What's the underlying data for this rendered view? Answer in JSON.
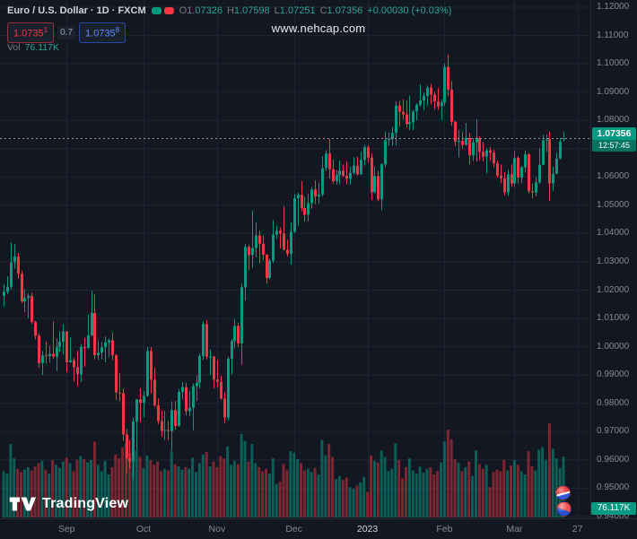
{
  "header": {
    "title": "Euro / U.S. Dollar · 1D · FXCM",
    "ohlc": {
      "o_label": "O",
      "o_value": "1.07326",
      "h_label": "H",
      "h_value": "1.07598",
      "l_label": "L",
      "l_value": "1.07251",
      "c_label": "C",
      "c_value": "1.07356",
      "change": "+0.00030 (+0.03%)"
    },
    "quote": {
      "sell": "1.0735",
      "sell_sup": "1",
      "spread": "0.7",
      "buy": "1.0735",
      "buy_sup": "8"
    },
    "vol_label": "Vol",
    "vol_value": "76.117K"
  },
  "watermark": "www.nehcap.com",
  "axis": {
    "last_price": "1.07356",
    "countdown": "12:57:45",
    "vol_badge": "76.117K"
  },
  "footer": {
    "brand": "TradingView"
  },
  "colors": {
    "bg": "#131722",
    "grid": "#1e2433",
    "up": "#089981",
    "down": "#f23645",
    "vol_up": "rgba(8,153,129,0.55)",
    "vol_down": "rgba(242,54,69,0.48)",
    "price_line": "#a9acb5",
    "text_dim": "#87898f",
    "text": "#d1d4dc",
    "badge_green": "#089981",
    "sell_red": "#f23645",
    "buy_blue": "#2962ff"
  },
  "chart_data": {
    "type": "candlestick",
    "title": "Euro / U.S. Dollar",
    "timeframe": "1D",
    "exchange": "FXCM",
    "ylim": [
      0.94,
      1.12
    ],
    "y_step": 0.01,
    "grid": true,
    "last_close": 1.07356,
    "x_ticks": [
      {
        "label": "Sep",
        "i": 18
      },
      {
        "label": "Oct",
        "i": 40
      },
      {
        "label": "Nov",
        "i": 61
      },
      {
        "label": "Dec",
        "i": 83
      },
      {
        "label": "2023",
        "i": 104,
        "major": true
      },
      {
        "label": "Feb",
        "i": 126
      },
      {
        "label": "Mar",
        "i": 146
      },
      {
        "label": "27",
        "i": 164
      }
    ],
    "candles_format": [
      "open",
      "high",
      "low",
      "close",
      "volume_K"
    ],
    "candles": [
      [
        1.018,
        1.0221,
        1.0142,
        1.0194,
        58
      ],
      [
        1.0194,
        1.0249,
        1.0185,
        1.0212,
        55
      ],
      [
        1.0212,
        1.0368,
        1.0202,
        1.0298,
        92
      ],
      [
        1.0298,
        1.0364,
        1.0276,
        1.0319,
        74
      ],
      [
        1.0319,
        1.0332,
        1.024,
        1.0258,
        61
      ],
      [
        1.0258,
        1.0269,
        1.0154,
        1.016,
        57
      ],
      [
        1.016,
        1.0203,
        1.0123,
        1.0172,
        60
      ],
      [
        1.0172,
        1.0188,
        1.01,
        1.018,
        63
      ],
      [
        1.018,
        1.0191,
        1.008,
        1.0088,
        59
      ],
      [
        1.0088,
        1.0092,
        1.0026,
        1.0039,
        64
      ],
      [
        1.0039,
        1.0047,
        0.9926,
        0.9942,
        68
      ],
      [
        0.9942,
        0.9985,
        0.99,
        0.9969,
        71
      ],
      [
        0.9969,
        1.0019,
        0.9942,
        0.9967,
        60
      ],
      [
        0.9967,
        1.0003,
        0.9944,
        0.9975,
        55
      ],
      [
        0.9975,
        1.009,
        0.9957,
        0.9965,
        72
      ],
      [
        0.9965,
        1.0029,
        0.9914,
        0.9999,
        66
      ],
      [
        0.9999,
        1.0055,
        0.9983,
        1.0018,
        62
      ],
      [
        1.0018,
        1.0079,
        0.9972,
        1.0054,
        70
      ],
      [
        1.0054,
        1.0055,
        0.991,
        0.9945,
        75
      ],
      [
        0.9945,
        1.0033,
        0.9944,
        0.9952,
        68
      ],
      [
        0.9952,
        0.996,
        0.9878,
        0.9928,
        58
      ],
      [
        0.9928,
        0.9987,
        0.9863,
        0.9903,
        72
      ],
      [
        0.9903,
        1.0009,
        0.9875,
        0.9999,
        77
      ],
      [
        0.9999,
        1.003,
        0.9929,
        0.9995,
        73
      ],
      [
        0.9995,
        1.0113,
        0.9993,
        1.004,
        69
      ],
      [
        1.004,
        1.0198,
        1.0038,
        1.0119,
        72
      ],
      [
        1.0119,
        1.0187,
        0.9955,
        0.997,
        95
      ],
      [
        0.997,
        1.0023,
        0.9954,
        0.9979,
        66
      ],
      [
        0.9979,
        1.0017,
        0.9955,
        0.9998,
        58
      ],
      [
        0.9998,
        1.0036,
        0.9945,
        1.0015,
        71
      ],
      [
        1.0015,
        1.0029,
        0.9964,
        1.0023,
        54
      ],
      [
        1.0023,
        1.0051,
        0.9954,
        0.997,
        63
      ],
      [
        0.997,
        0.9974,
        0.9812,
        0.9838,
        79
      ],
      [
        0.9838,
        0.9907,
        0.9807,
        0.9836,
        74
      ],
      [
        0.9836,
        0.9852,
        0.9667,
        0.969,
        88
      ],
      [
        0.969,
        0.9709,
        0.9554,
        0.9607,
        94
      ],
      [
        0.9607,
        0.967,
        0.957,
        0.9594,
        81
      ],
      [
        0.9594,
        0.975,
        0.9535,
        0.9735,
        99
      ],
      [
        0.9735,
        0.9815,
        0.9634,
        0.9814,
        84
      ],
      [
        0.9814,
        0.9853,
        0.9733,
        0.9802,
        76
      ],
      [
        0.9802,
        0.9844,
        0.9751,
        0.9826,
        62
      ],
      [
        0.9826,
        0.9999,
        0.9823,
        0.9985,
        78
      ],
      [
        0.9985,
        0.9999,
        0.9835,
        0.9884,
        72
      ],
      [
        0.9884,
        0.9926,
        0.9787,
        0.9793,
        66
      ],
      [
        0.9793,
        0.9817,
        0.9726,
        0.9737,
        70
      ],
      [
        0.9737,
        0.9774,
        0.9682,
        0.9703,
        58
      ],
      [
        0.9703,
        0.9774,
        0.967,
        0.9706,
        61
      ],
      [
        0.9706,
        0.9738,
        0.9669,
        0.9702,
        59
      ],
      [
        0.9702,
        0.9807,
        0.9632,
        0.9776,
        83
      ],
      [
        0.9776,
        0.9808,
        0.9707,
        0.972,
        67
      ],
      [
        0.972,
        0.9851,
        0.9718,
        0.984,
        64
      ],
      [
        0.984,
        0.9876,
        0.9815,
        0.9857,
        60
      ],
      [
        0.9857,
        0.9873,
        0.9757,
        0.9772,
        63
      ],
      [
        0.9772,
        0.9845,
        0.9756,
        0.9784,
        61
      ],
      [
        0.9784,
        0.987,
        0.9705,
        0.9861,
        75
      ],
      [
        0.9861,
        0.9899,
        0.9808,
        0.9873,
        57
      ],
      [
        0.9873,
        0.9976,
        0.9852,
        0.9967,
        68
      ],
      [
        0.9967,
        1.0089,
        0.9953,
        1.008,
        79
      ],
      [
        1.008,
        1.0094,
        0.9954,
        0.9965,
        82
      ],
      [
        0.9965,
        0.999,
        0.99,
        0.9965,
        64
      ],
      [
        0.9965,
        0.9968,
        0.9852,
        0.9884,
        70
      ],
      [
        0.9884,
        0.9953,
        0.9854,
        0.9876,
        63
      ],
      [
        0.9876,
        0.9897,
        0.9813,
        0.9817,
        77
      ],
      [
        0.9817,
        0.984,
        0.973,
        0.975,
        74
      ],
      [
        0.975,
        0.9965,
        0.9741,
        0.9958,
        89
      ],
      [
        0.9958,
        1.0027,
        0.9902,
        1.002,
        66
      ],
      [
        1.002,
        1.0096,
        0.9994,
        1.0074,
        71
      ],
      [
        1.0074,
        1.0086,
        0.9998,
        1.0012,
        67
      ],
      [
        1.0012,
        1.0222,
        0.9936,
        1.021,
        105
      ],
      [
        1.021,
        1.0364,
        1.0163,
        1.0353,
        96
      ],
      [
        1.0353,
        1.036,
        1.0271,
        1.0324,
        70
      ],
      [
        1.0324,
        1.0481,
        1.0279,
        1.0349,
        92
      ],
      [
        1.0349,
        1.0439,
        1.0316,
        1.0393,
        68
      ],
      [
        1.0393,
        1.041,
        1.0295,
        1.0364,
        63
      ],
      [
        1.0364,
        1.0394,
        1.0305,
        1.0325,
        58
      ],
      [
        1.0325,
        1.0328,
        1.0222,
        1.0243,
        61
      ],
      [
        1.0243,
        1.0311,
        1.0239,
        1.0304,
        55
      ],
      [
        1.0304,
        1.0448,
        1.0296,
        1.0396,
        74
      ],
      [
        1.0396,
        1.0428,
        1.0382,
        1.041,
        42
      ],
      [
        1.041,
        1.0421,
        1.0347,
        1.04,
        45
      ],
      [
        1.04,
        1.0497,
        1.034,
        1.0343,
        67
      ],
      [
        1.0343,
        1.0378,
        1.0319,
        1.0328,
        59
      ],
      [
        1.0328,
        1.0439,
        1.0291,
        1.0406,
        83
      ],
      [
        1.0406,
        1.0539,
        1.0402,
        1.0525,
        81
      ],
      [
        1.0525,
        1.0545,
        1.0428,
        1.0537,
        73
      ],
      [
        1.0537,
        1.0585,
        1.0479,
        1.049,
        68
      ],
      [
        1.049,
        1.0531,
        1.0442,
        1.0467,
        59
      ],
      [
        1.0467,
        1.0542,
        1.0443,
        1.0507,
        61
      ],
      [
        1.0507,
        1.0564,
        1.0489,
        1.0556,
        57
      ],
      [
        1.0556,
        1.0588,
        1.0504,
        1.0531,
        62
      ],
      [
        1.0531,
        1.058,
        1.0506,
        1.0538,
        54
      ],
      [
        1.0538,
        1.0673,
        1.053,
        1.0631,
        97
      ],
      [
        1.0631,
        1.0695,
        1.0622,
        1.0683,
        78
      ],
      [
        1.0683,
        1.0735,
        1.0594,
        1.0627,
        92
      ],
      [
        1.0627,
        1.0661,
        1.0576,
        1.0585,
        76
      ],
      [
        1.0585,
        1.0625,
        1.0573,
        1.0607,
        48
      ],
      [
        1.0607,
        1.0658,
        1.0575,
        1.0622,
        52
      ],
      [
        1.0622,
        1.0644,
        1.06,
        1.0604,
        47
      ],
      [
        1.0604,
        1.0656,
        1.0574,
        1.0594,
        50
      ],
      [
        1.0594,
        1.0636,
        1.0573,
        1.0614,
        38
      ],
      [
        1.0614,
        1.067,
        1.0609,
        1.064,
        36
      ],
      [
        1.064,
        1.0672,
        1.0605,
        1.061,
        40
      ],
      [
        1.061,
        1.069,
        1.0607,
        1.066,
        44
      ],
      [
        1.066,
        1.0714,
        1.064,
        1.0705,
        51
      ],
      [
        1.0705,
        1.0712,
        1.065,
        1.0668,
        32
      ],
      [
        1.0668,
        1.0683,
        1.0519,
        1.0546,
        78
      ],
      [
        1.0546,
        1.0635,
        1.0542,
        1.0603,
        71
      ],
      [
        1.0603,
        1.0621,
        1.0514,
        1.0521,
        69
      ],
      [
        1.0521,
        1.0648,
        1.0483,
        1.0645,
        84
      ],
      [
        1.0645,
        1.0761,
        1.0634,
        1.073,
        76
      ],
      [
        1.073,
        1.0758,
        1.0711,
        1.0734,
        58
      ],
      [
        1.0734,
        1.0776,
        1.071,
        1.0756,
        61
      ],
      [
        1.0756,
        1.0868,
        1.0712,
        1.0852,
        93
      ],
      [
        1.0852,
        1.0869,
        1.0779,
        1.083,
        72
      ],
      [
        1.083,
        1.0874,
        1.0802,
        1.0821,
        49
      ],
      [
        1.0821,
        1.087,
        1.0775,
        1.0787,
        63
      ],
      [
        1.0787,
        1.0887,
        1.0766,
        1.0793,
        74
      ],
      [
        1.0793,
        1.0838,
        1.0765,
        1.0831,
        59
      ],
      [
        1.0831,
        1.086,
        1.08,
        1.0855,
        55
      ],
      [
        1.0855,
        1.0927,
        1.0848,
        1.087,
        64
      ],
      [
        1.087,
        1.0898,
        1.0835,
        1.0886,
        56
      ],
      [
        1.0886,
        1.0923,
        1.0852,
        1.0916,
        61
      ],
      [
        1.0916,
        1.0929,
        1.0857,
        1.0891,
        63
      ],
      [
        1.0891,
        1.09,
        1.0838,
        1.0867,
        54
      ],
      [
        1.0867,
        1.0913,
        1.0837,
        1.085,
        58
      ],
      [
        1.085,
        1.0874,
        1.0801,
        1.0863,
        69
      ],
      [
        1.0863,
        1.1001,
        1.0851,
        1.0989,
        95
      ],
      [
        1.0989,
        1.1033,
        1.0885,
        1.0909,
        110
      ],
      [
        1.0909,
        1.0939,
        1.078,
        1.0795,
        98
      ],
      [
        1.0795,
        1.0798,
        1.0709,
        1.0724,
        73
      ],
      [
        1.0724,
        1.0766,
        1.0669,
        1.0727,
        69
      ],
      [
        1.0727,
        1.076,
        1.0699,
        1.0713,
        58
      ],
      [
        1.0713,
        1.0791,
        1.0711,
        1.0738,
        63
      ],
      [
        1.0738,
        1.0755,
        1.0643,
        1.0676,
        70
      ],
      [
        1.0676,
        1.0737,
        1.0656,
        1.0722,
        52
      ],
      [
        1.0722,
        1.0804,
        1.0655,
        1.0737,
        84
      ],
      [
        1.0737,
        1.0743,
        1.066,
        1.0689,
        67
      ],
      [
        1.0689,
        1.0724,
        1.0655,
        1.0672,
        61
      ],
      [
        1.0672,
        1.0701,
        1.0612,
        1.0694,
        66
      ],
      [
        1.0694,
        1.0705,
        1.0657,
        1.0686,
        38
      ],
      [
        1.0686,
        1.0697,
        1.0634,
        1.0648,
        57
      ],
      [
        1.0648,
        1.0658,
        1.0598,
        1.0605,
        60
      ],
      [
        1.0605,
        1.0644,
        1.0577,
        1.0595,
        58
      ],
      [
        1.0595,
        1.0617,
        1.0536,
        1.0546,
        72
      ],
      [
        1.0546,
        1.0626,
        1.0533,
        1.0609,
        59
      ],
      [
        1.0609,
        1.0645,
        1.0565,
        1.0577,
        65
      ],
      [
        1.0577,
        1.0691,
        1.0565,
        1.0667,
        72
      ],
      [
        1.0667,
        1.0674,
        1.0577,
        1.0598,
        66
      ],
      [
        1.0598,
        1.0638,
        1.0578,
        1.0634,
        58
      ],
      [
        1.0634,
        1.0694,
        1.0615,
        1.068,
        54
      ],
      [
        1.068,
        1.0685,
        1.0542,
        1.0549,
        83
      ],
      [
        1.0549,
        1.0577,
        1.0524,
        1.0545,
        64
      ],
      [
        1.0545,
        1.0599,
        1.0532,
        1.0581,
        59
      ],
      [
        1.0581,
        1.0701,
        1.0575,
        1.0643,
        85
      ],
      [
        1.0643,
        1.0749,
        1.0641,
        1.0729,
        88
      ],
      [
        1.0729,
        1.075,
        1.0688,
        1.0733,
        72
      ],
      [
        1.0733,
        1.076,
        1.0516,
        1.0577,
        118
      ],
      [
        1.0577,
        1.0636,
        1.0551,
        1.0611,
        86
      ],
      [
        1.0611,
        1.0686,
        1.0611,
        1.0665,
        74
      ],
      [
        1.0665,
        1.0737,
        1.0662,
        1.0724,
        62
      ],
      [
        1.07326,
        1.07598,
        1.07251,
        1.07356,
        76.117
      ]
    ]
  }
}
